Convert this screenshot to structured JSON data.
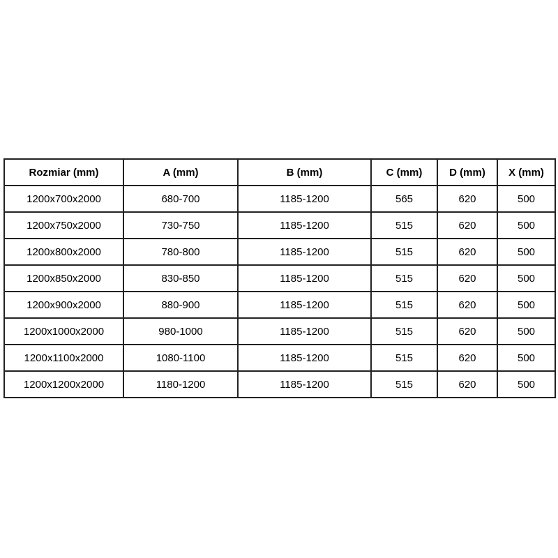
{
  "page": {
    "background_color": "#ffffff",
    "border_color": "#222222",
    "text_color": "#000000"
  },
  "table": {
    "headers": [
      "Rozmiar (mm)",
      "A (mm)",
      "B (mm)",
      "C (mm)",
      "D (mm)",
      "X (mm)"
    ],
    "rows": [
      [
        "1200x700x2000",
        "680-700",
        "1185-1200",
        "565",
        "620",
        "500"
      ],
      [
        "1200x750x2000",
        "730-750",
        "1185-1200",
        "515",
        "620",
        "500"
      ],
      [
        "1200x800x2000",
        "780-800",
        "1185-1200",
        "515",
        "620",
        "500"
      ],
      [
        "1200x850x2000",
        "830-850",
        "1185-1200",
        "515",
        "620",
        "500"
      ],
      [
        "1200x900x2000",
        "880-900",
        "1185-1200",
        "515",
        "620",
        "500"
      ],
      [
        "1200x1000x2000",
        "980-1000",
        "1185-1200",
        "515",
        "620",
        "500"
      ],
      [
        "1200x1100x2000",
        "1080-1100",
        "1185-1200",
        "515",
        "620",
        "500"
      ],
      [
        "1200x1200x2000",
        "1180-1200",
        "1185-1200",
        "515",
        "620",
        "500"
      ]
    ]
  },
  "chart_data": {
    "type": "table",
    "title": "",
    "columns": [
      "Rozmiar (mm)",
      "A (mm)",
      "B (mm)",
      "C (mm)",
      "D (mm)",
      "X (mm)"
    ],
    "rows": [
      [
        "1200x700x2000",
        "680-700",
        "1185-1200",
        565,
        620,
        500
      ],
      [
        "1200x750x2000",
        "730-750",
        "1185-1200",
        515,
        620,
        500
      ],
      [
        "1200x800x2000",
        "780-800",
        "1185-1200",
        515,
        620,
        500
      ],
      [
        "1200x850x2000",
        "830-850",
        "1185-1200",
        515,
        620,
        500
      ],
      [
        "1200x900x2000",
        "880-900",
        "1185-1200",
        515,
        620,
        500
      ],
      [
        "1200x1000x2000",
        "980-1000",
        "1185-1200",
        515,
        620,
        500
      ],
      [
        "1200x1100x2000",
        "1080-1100",
        "1185-1200",
        515,
        620,
        500
      ],
      [
        "1200x1200x2000",
        "1180-1200",
        "1185-1200",
        515,
        620,
        500
      ]
    ],
    "layout_hints": {
      "grid": true,
      "header_bold": true,
      "cell_alignment": "center"
    }
  }
}
